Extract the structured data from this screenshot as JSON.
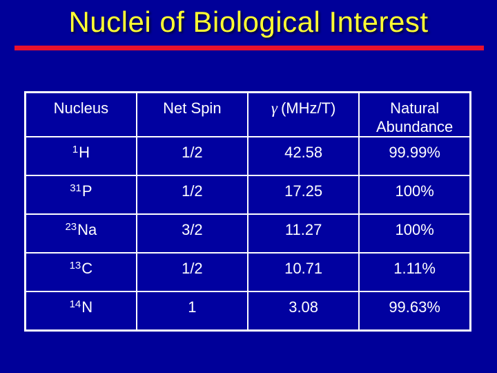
{
  "slide": {
    "title": "Nuclei of Biological Interest",
    "colors": {
      "background": "#000099",
      "title_text": "#FFFF33",
      "title_rule": "#E8112D",
      "table_border": "#FFFFFF",
      "table_text": "#FFFFFF",
      "cell_fill": "#0101A0"
    },
    "table": {
      "headers": [
        {
          "label": "Nucleus"
        },
        {
          "label": "Net Spin"
        },
        {
          "symbol": "γ",
          "label": "(MHz/T)"
        },
        {
          "label": "Natural Abundance"
        }
      ],
      "rows": [
        {
          "mass": "1",
          "symbol": "H",
          "net_spin": "1/2",
          "gamma_mhz_t": "42.58",
          "natural_abundance": "99.99%"
        },
        {
          "mass": "31",
          "symbol": "P",
          "net_spin": "1/2",
          "gamma_mhz_t": "17.25",
          "natural_abundance": "100%"
        },
        {
          "mass": "23",
          "symbol": "Na",
          "net_spin": "3/2",
          "gamma_mhz_t": "11.27",
          "natural_abundance": "100%"
        },
        {
          "mass": "13",
          "symbol": "C",
          "net_spin": "1/2",
          "gamma_mhz_t": "10.71",
          "natural_abundance": "1.11%"
        },
        {
          "mass": "14",
          "symbol": "N",
          "net_spin": "1",
          "gamma_mhz_t": "3.08",
          "natural_abundance": "99.63%"
        }
      ]
    }
  }
}
